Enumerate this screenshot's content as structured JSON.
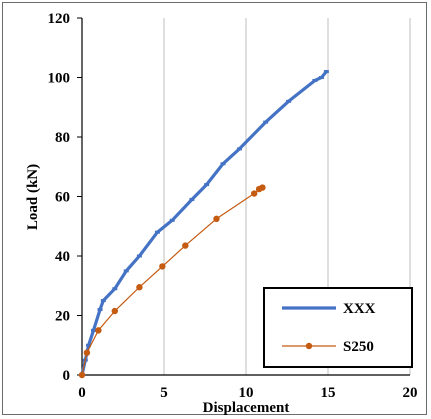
{
  "chart_data": {
    "type": "line",
    "xlabel": "Displacement",
    "ylabel": "Load (kN)",
    "xlim": [
      0,
      20
    ],
    "ylim": [
      0,
      120
    ],
    "x_ticks": [
      "0",
      "5",
      "10",
      "15",
      "20"
    ],
    "y_ticks": [
      "0",
      "20",
      "40",
      "60",
      "80",
      "100",
      "120"
    ],
    "grid": "vertical",
    "legend_position": "bottom-right",
    "series": [
      {
        "name": "XXX",
        "color": "#4472c4",
        "marker": "dash",
        "points": [
          [
            0,
            0
          ],
          [
            0.2,
            5
          ],
          [
            0.4,
            10
          ],
          [
            0.7,
            15
          ],
          [
            1.1,
            22
          ],
          [
            1.3,
            25
          ],
          [
            2,
            29
          ],
          [
            2.7,
            35
          ],
          [
            3.5,
            40
          ],
          [
            4.6,
            48
          ],
          [
            5.5,
            52
          ],
          [
            6.7,
            59
          ],
          [
            7.6,
            64
          ],
          [
            8.6,
            71
          ],
          [
            9.6,
            76
          ],
          [
            11.2,
            85
          ],
          [
            12.6,
            92
          ],
          [
            14.2,
            99
          ],
          [
            14.6,
            100
          ],
          [
            14.9,
            102
          ]
        ]
      },
      {
        "name": "S250",
        "color": "#c55a11",
        "marker": "circle",
        "points": [
          [
            0,
            0
          ],
          [
            0.3,
            7.5
          ],
          [
            1,
            15
          ],
          [
            2,
            21.5
          ],
          [
            3.5,
            29.5
          ],
          [
            4.9,
            36.5
          ],
          [
            6.3,
            43.5
          ],
          [
            8.2,
            52.5
          ],
          [
            10.5,
            61
          ],
          [
            10.8,
            62.5
          ],
          [
            11,
            63
          ]
        ]
      }
    ]
  }
}
